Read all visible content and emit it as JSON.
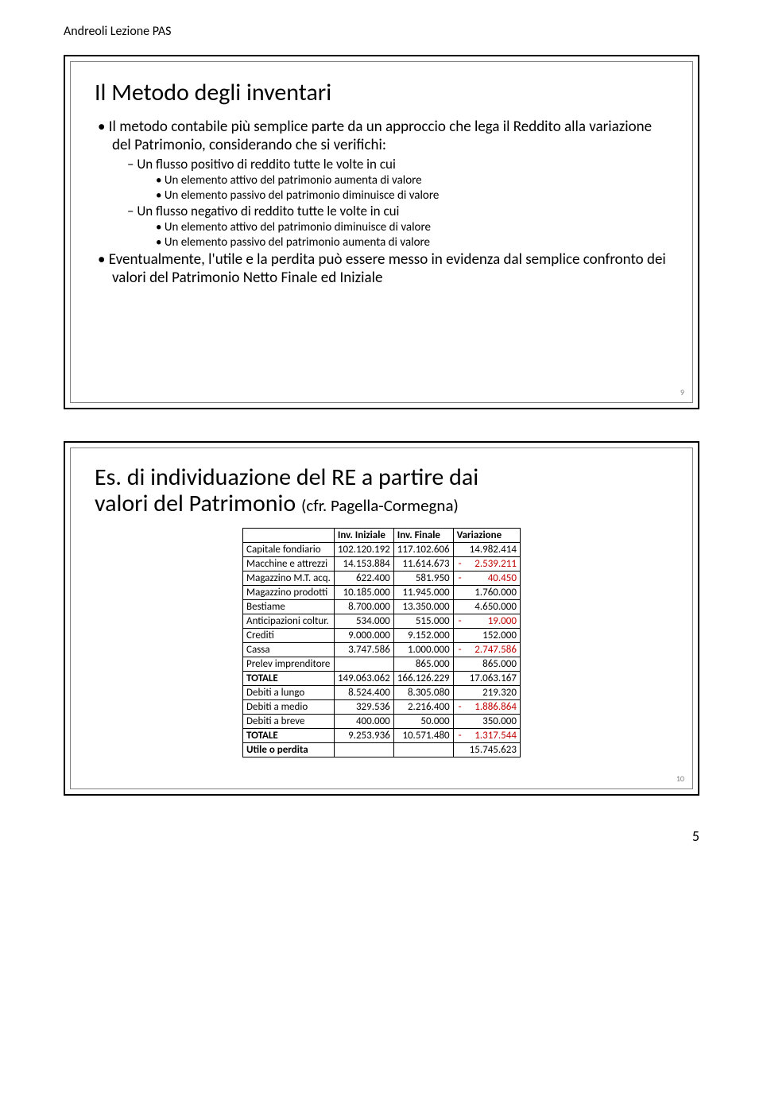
{
  "header": "Andreoli Lezione PAS",
  "slide1": {
    "title": "Il Metodo degli inventari",
    "bullets_l1_a": "Il metodo contabile più semplice parte da un approccio che lega il Reddito alla variazione del Patrimonio, considerando che si verifichi:",
    "l2_a": "Un flusso positivo di reddito tutte le volte in cui",
    "l3_a1": "Un elemento attivo del patrimonio aumenta di valore",
    "l3_a2": "Un elemento passivo del patrimonio diminuisce di valore",
    "l2_b": "Un flusso negativo di reddito tutte le volte in cui",
    "l3_b1": "Un elemento attivo del patrimonio diminuisce di valore",
    "l3_b2": "Un elemento passivo del patrimonio aumenta di valore",
    "bullets_l1_b": "Eventualmente, l'utile e la perdita può essere messo in evidenza dal semplice confronto dei valori del Patrimonio Netto Finale ed Iniziale",
    "num": "9"
  },
  "slide2": {
    "title_l1": "Es. di individuazione del RE a partire dai",
    "title_l2_a": "valori del Patrimonio ",
    "title_l2_b": "(cfr. Pagella-Cormegna)",
    "headers": [
      "",
      "Inv. Iniziale",
      "Inv. Finale",
      "Variazione"
    ],
    "rows": [
      {
        "label": "Capitale fondiario",
        "ini": "102.120.192",
        "fin": "117.102.606",
        "var": "14.982.414",
        "neg": false,
        "bold": false
      },
      {
        "label": "Macchine e attrezzi",
        "ini": "14.153.884",
        "fin": "11.614.673",
        "var": "2.539.211",
        "neg": true,
        "bold": false
      },
      {
        "label": "Magazzino M.T. acq.",
        "ini": "622.400",
        "fin": "581.950",
        "var": "40.450",
        "neg": true,
        "bold": false
      },
      {
        "label": "Magazzino prodotti",
        "ini": "10.185.000",
        "fin": "11.945.000",
        "var": "1.760.000",
        "neg": false,
        "bold": false
      },
      {
        "label": "Bestiame",
        "ini": "8.700.000",
        "fin": "13.350.000",
        "var": "4.650.000",
        "neg": false,
        "bold": false
      },
      {
        "label": "Anticipazioni coltur.",
        "ini": "534.000",
        "fin": "515.000",
        "var": "19.000",
        "neg": true,
        "bold": false
      },
      {
        "label": "Crediti",
        "ini": "9.000.000",
        "fin": "9.152.000",
        "var": "152.000",
        "neg": false,
        "bold": false
      },
      {
        "label": "Cassa",
        "ini": "3.747.586",
        "fin": "1.000.000",
        "var": "2.747.586",
        "neg": true,
        "bold": false
      },
      {
        "label": "Prelev imprenditore",
        "ini": "",
        "fin": "865.000",
        "var": "865.000",
        "neg": false,
        "bold": false
      },
      {
        "label": "TOTALE",
        "ini": "149.063.062",
        "fin": "166.126.229",
        "var": "17.063.167",
        "neg": false,
        "bold": true
      },
      {
        "label": "Debiti a lungo",
        "ini": "8.524.400",
        "fin": "8.305.080",
        "var": "219.320",
        "neg": false,
        "bold": false
      },
      {
        "label": "Debiti a medio",
        "ini": "329.536",
        "fin": "2.216.400",
        "var": "1.886.864",
        "neg": true,
        "bold": false
      },
      {
        "label": "Debiti a breve",
        "ini": "400.000",
        "fin": "50.000",
        "var": "350.000",
        "neg": false,
        "bold": false
      },
      {
        "label": "TOTALE",
        "ini": "9.253.936",
        "fin": "10.571.480",
        "var": "1.317.544",
        "neg": true,
        "bold": true
      },
      {
        "label": "Utile o perdita",
        "ini": "",
        "fin": "",
        "var": "15.745.623",
        "neg": false,
        "bold": true
      }
    ],
    "num": "10"
  },
  "page_num": "5"
}
